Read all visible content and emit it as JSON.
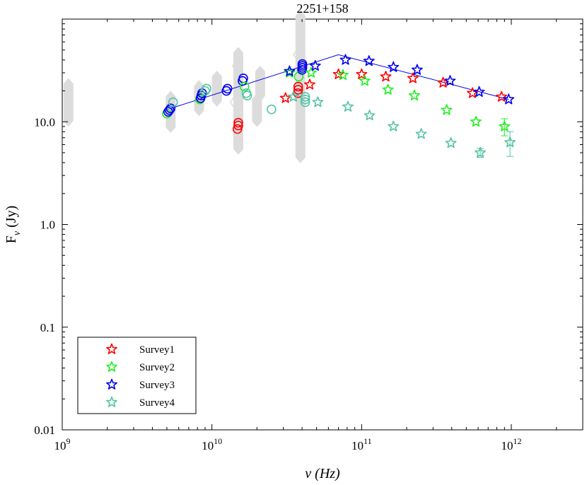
{
  "chart_data": {
    "type": "scatter",
    "title": "2251+158",
    "xlabel": "ν (Hz)",
    "ylabel_main": "F",
    "ylabel_sub": "ν",
    "ylabel_unit": " (Jy)",
    "xscale": "log",
    "yscale": "log",
    "xlim": [
      1000000000.0,
      3000000000000.0
    ],
    "ylim": [
      0.01,
      100
    ],
    "grid": false,
    "legend_position": "bottom-left",
    "x_ticks": [
      {
        "value": 1000000000.0,
        "base": "10",
        "exp": "9"
      },
      {
        "value": 10000000000.0,
        "base": "10",
        "exp": "10"
      },
      {
        "value": 100000000000.0,
        "base": "10",
        "exp": "11"
      },
      {
        "value": 1000000000000.0,
        "base": "10",
        "exp": "12"
      }
    ],
    "y_ticks": [
      {
        "value": 0.01,
        "label": "0.01"
      },
      {
        "value": 0.1,
        "label": "0.1"
      },
      {
        "value": 1,
        "label": "1.0"
      },
      {
        "value": 10,
        "label": "10.0"
      }
    ],
    "colors": {
      "survey1": "#ff0000",
      "survey2": "#22ee22",
      "survey3": "#0000ee",
      "survey4": "#55c4a6",
      "archival": "#dcdcdc",
      "fit_line": "#0000ee"
    },
    "series": [
      {
        "name": "Survey1",
        "key": "survey1",
        "marker": "star",
        "x": [
          31000000000.0,
          45000000000.0,
          70000000000.0,
          100000000000.0,
          145000000000.0,
          220000000000.0,
          350000000000.0,
          550000000000.0,
          860000000000.0
        ],
        "y": [
          17,
          23,
          29,
          29,
          27.5,
          26.5,
          24,
          19,
          17.5
        ]
      },
      {
        "name": "Survey2",
        "key": "survey2",
        "marker": "star",
        "x": [
          33000000000.0,
          46000000000.0,
          75000000000.0,
          105000000000.0,
          150000000000.0,
          225000000000.0,
          370000000000.0,
          580000000000.0,
          900000000000.0
        ],
        "y": [
          30,
          30,
          28.5,
          25,
          20.5,
          18,
          13,
          10,
          9
        ],
        "error": [
          0,
          0,
          0,
          0,
          0,
          0,
          0,
          0,
          1.7
        ]
      },
      {
        "name": "Survey3",
        "key": "survey3",
        "marker": "star",
        "x": [
          33000000000.0,
          49000000000.0,
          78000000000.0,
          112000000000.0,
          163000000000.0,
          235000000000.0,
          390000000000.0,
          610000000000.0,
          960000000000.0
        ],
        "y": [
          31,
          35,
          40,
          39,
          34,
          32,
          25,
          19.5,
          16.5
        ]
      },
      {
        "name": "Survey4",
        "key": "survey4",
        "marker": "star",
        "x": [
          35000000000.0,
          51000000000.0,
          81000000000.0,
          113000000000.0,
          163000000000.0,
          250000000000.0,
          395000000000.0,
          620000000000.0,
          980000000000.0
        ],
        "y": [
          17.5,
          15.5,
          14,
          11.5,
          9,
          7.6,
          6.2,
          5,
          6.3
        ],
        "error": [
          0,
          0,
          0,
          0,
          0,
          0,
          0,
          0.5,
          1.7
        ]
      }
    ],
    "circle_points": [
      {
        "key": "survey2",
        "x": 5000000000.0,
        "y": 12
      },
      {
        "key": "survey3",
        "x": 5100000000.0,
        "y": 12.5
      },
      {
        "key": "survey3",
        "x": 5200000000.0,
        "y": 13
      },
      {
        "key": "survey3",
        "x": 5300000000.0,
        "y": 13.5
      },
      {
        "key": "survey4",
        "x": 5500000000.0,
        "y": 15.5
      },
      {
        "key": "survey2",
        "x": 8300000000.0,
        "y": 16.5
      },
      {
        "key": "survey3",
        "x": 8400000000.0,
        "y": 17
      },
      {
        "key": "survey3",
        "x": 8500000000.0,
        "y": 18
      },
      {
        "key": "survey3",
        "x": 8600000000.0,
        "y": 19
      },
      {
        "key": "survey4",
        "x": 9000000000.0,
        "y": 20
      },
      {
        "key": "survey4",
        "x": 9200000000.0,
        "y": 21
      },
      {
        "key": "survey3",
        "x": 12500000000.0,
        "y": 20
      },
      {
        "key": "survey3",
        "x": 12700000000.0,
        "y": 21
      },
      {
        "key": "survey1",
        "x": 14800000000.0,
        "y": 8.5
      },
      {
        "key": "survey1",
        "x": 15000000000.0,
        "y": 9.2
      },
      {
        "key": "survey1",
        "x": 15000000000.0,
        "y": 9.8
      },
      {
        "key": "survey3",
        "x": 16000000000.0,
        "y": 25
      },
      {
        "key": "survey3",
        "x": 16200000000.0,
        "y": 26.5
      },
      {
        "key": "survey2",
        "x": 16500000000.0,
        "y": 22
      },
      {
        "key": "survey4",
        "x": 17000000000.0,
        "y": 19
      },
      {
        "key": "survey4",
        "x": 17200000000.0,
        "y": 18
      },
      {
        "key": "survey4",
        "x": 25000000000.0,
        "y": 13.2
      },
      {
        "key": "survey1",
        "x": 37500000000.0,
        "y": 19
      },
      {
        "key": "survey1",
        "x": 37700000000.0,
        "y": 20.5
      },
      {
        "key": "survey1",
        "x": 37700000000.0,
        "y": 22
      },
      {
        "key": "survey2",
        "x": 38000000000.0,
        "y": 27.5
      },
      {
        "key": "survey3",
        "x": 40000000000.0,
        "y": 32
      },
      {
        "key": "survey3",
        "x": 40200000000.0,
        "y": 33.5
      },
      {
        "key": "survey3",
        "x": 40200000000.0,
        "y": 35
      },
      {
        "key": "survey3",
        "x": 40200000000.0,
        "y": 36.5
      },
      {
        "key": "survey4",
        "x": 42000000000.0,
        "y": 15.5
      },
      {
        "key": "survey4",
        "x": 42000000000.0,
        "y": 16.5
      },
      {
        "key": "survey4",
        "x": 42000000000.0,
        "y": 17.5
      }
    ],
    "archival_diamonds": [
      {
        "x": 1100000000.0,
        "y": 15.5,
        "dy": 0.18
      },
      {
        "x": 5300000000.0,
        "y": 12.5,
        "dy": 0.15
      },
      {
        "x": 8200000000.0,
        "y": 17,
        "dy": 0.12
      },
      {
        "x": 10800000000.0,
        "y": 21,
        "dy": 0.12
      },
      {
        "x": 15000000000.0,
        "y": 16,
        "dy": 0.47
      },
      {
        "x": 20000000000.0,
        "y": 13,
        "dy": 0.11
      },
      {
        "x": 21000000000.0,
        "y": 23.5,
        "dy": 0.12
      },
      {
        "x": 39000000000.0,
        "y": 22,
        "dy": 0.69
      }
    ],
    "open_diamonds": [
      {
        "x": 14500000000.0,
        "y": 35
      },
      {
        "x": 14000000000.0,
        "y": 15.5
      },
      {
        "x": 37000000000.0,
        "y": 45
      }
    ],
    "fit_line": {
      "x": [
        5300000000.0,
        70000000000.0,
        960000000000.0
      ],
      "y": [
        13.5,
        45,
        16.5
      ]
    },
    "legend": [
      {
        "label": "Survey1",
        "key": "survey1"
      },
      {
        "label": "Survey2",
        "key": "survey2"
      },
      {
        "label": "Survey3",
        "key": "survey3"
      },
      {
        "label": "Survey4",
        "key": "survey4"
      }
    ]
  }
}
